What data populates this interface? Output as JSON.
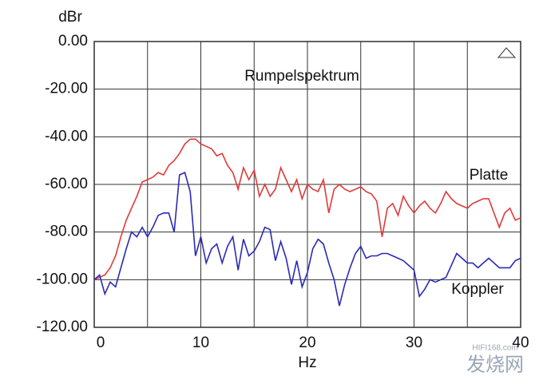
{
  "chart_data": {
    "type": "line",
    "title": "Rumpelspektrum",
    "y_label": "dBr",
    "x_label": "Hz",
    "x": [
      0,
      0.5,
      1,
      1.5,
      2,
      2.5,
      3,
      3.5,
      4,
      4.5,
      5,
      5.5,
      6,
      6.5,
      7,
      7.5,
      8,
      8.5,
      9,
      9.5,
      10,
      10.5,
      11,
      11.5,
      12,
      12.5,
      13,
      13.5,
      14,
      14.5,
      15,
      15.5,
      16,
      16.5,
      17,
      17.5,
      18,
      18.5,
      19,
      19.5,
      20,
      20.5,
      21,
      21.5,
      22,
      22.5,
      23,
      23.5,
      24,
      24.5,
      25,
      25.5,
      26,
      26.5,
      27,
      27.5,
      28,
      28.5,
      29,
      29.5,
      30,
      30.5,
      31,
      31.5,
      32,
      32.5,
      33,
      33.5,
      34,
      34.5,
      35,
      35.5,
      36,
      36.5,
      37,
      37.5,
      38,
      38.5,
      39,
      39.5,
      40
    ],
    "series": [
      {
        "name": "Platte",
        "color": "#e03a3a",
        "values": [
          -100,
          -99,
          -98,
          -95,
          -90,
          -82,
          -75,
          -70,
          -65,
          -59,
          -58,
          -57,
          -55,
          -56,
          -52,
          -50,
          -47,
          -43,
          -41,
          -41,
          -43,
          -44,
          -45,
          -48,
          -47,
          -52,
          -55,
          -62,
          -53,
          -58,
          -54,
          -65,
          -60,
          -65,
          -62,
          -53,
          -58,
          -63,
          -58,
          -66,
          -60,
          -62,
          -63,
          -58,
          -72,
          -62,
          -60,
          -62,
          -63,
          -62,
          -61,
          -63,
          -64,
          -67,
          -82,
          -70,
          -68,
          -73,
          -65,
          -69,
          -72,
          -69,
          -67,
          -70,
          -72,
          -68,
          -63,
          -66,
          -68,
          -69,
          -70,
          -68,
          -67,
          -66,
          -66,
          -72,
          -78,
          -72,
          -70,
          -75,
          -74
        ]
      },
      {
        "name": "Koppler",
        "color": "#2a2ab8",
        "values": [
          -100,
          -98,
          -106,
          -101,
          -103,
          -95,
          -87,
          -80,
          -82,
          -78,
          -82,
          -78,
          -73,
          -72,
          -72,
          -80,
          -56,
          -55,
          -63,
          -90,
          -82,
          -93,
          -87,
          -85,
          -93,
          -86,
          -82,
          -96,
          -83,
          -90,
          -88,
          -84,
          -78,
          -79,
          -92,
          -84,
          -91,
          -102,
          -92,
          -103,
          -97,
          -87,
          -83,
          -85,
          -93,
          -100,
          -111,
          -102,
          -95,
          -89,
          -86,
          -91,
          -90,
          -90,
          -89,
          -89,
          -90,
          -91,
          -92,
          -94,
          -96,
          -107,
          -104,
          -100,
          -101,
          -100,
          -99,
          -94,
          -89,
          -91,
          -93,
          -93,
          -95,
          -93,
          -91,
          -93,
          -95,
          -95,
          -95,
          -92,
          -91
        ]
      }
    ],
    "xlim": [
      0,
      40
    ],
    "xticks": [
      0,
      10,
      20,
      30,
      40
    ],
    "x_minor_grid": [
      5,
      15,
      25,
      35
    ],
    "ylim": [
      -120,
      0
    ],
    "yticks": [
      {
        "value": 0,
        "label": "0.00"
      },
      {
        "value": -20,
        "label": "-20.00"
      },
      {
        "value": -40,
        "label": "-40.00"
      },
      {
        "value": -60,
        "label": "-60.00"
      },
      {
        "value": -80,
        "label": "-80.00"
      },
      {
        "value": -100,
        "label": "-100.00"
      },
      {
        "value": -120,
        "label": "-120.00"
      }
    ],
    "grid": true,
    "watermark": [
      "HIFI168.com",
      "发烧网"
    ]
  }
}
